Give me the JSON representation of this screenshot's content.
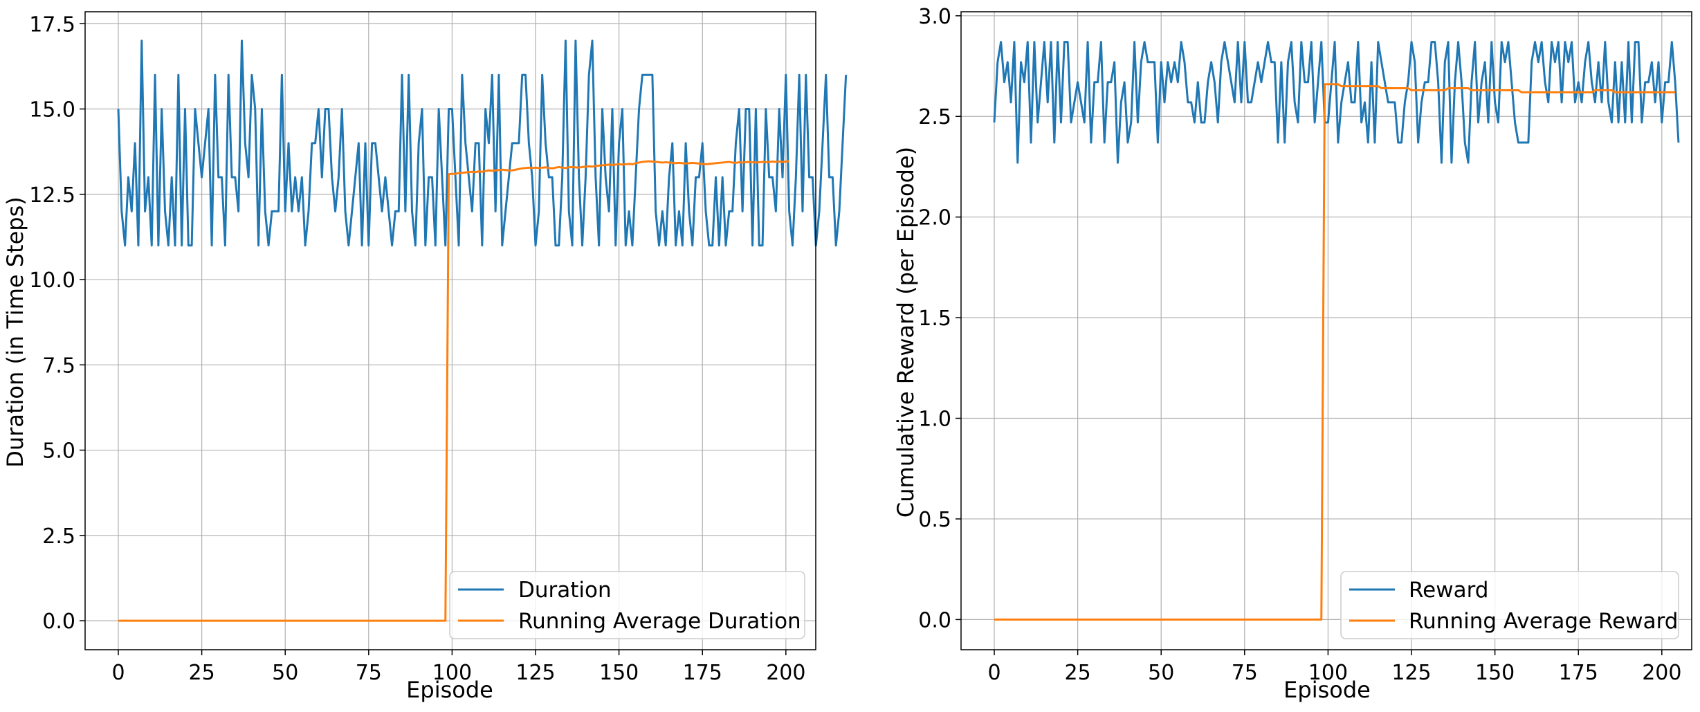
{
  "colors": {
    "series_raw": "#1f77b4",
    "series_avg": "#ff7f0e",
    "grid": "#b0b0b0",
    "axes": "#000000",
    "background": "#ffffff"
  },
  "chart_data": [
    {
      "type": "line",
      "xlabel": "Episode",
      "ylabel": "Duration (in Time Steps)",
      "xlim": [
        -9.95,
        208.95
      ],
      "ylim": [
        -0.85,
        17.85
      ],
      "xticks": [
        0,
        25,
        50,
        75,
        100,
        125,
        150,
        175,
        200
      ],
      "xtick_labels": [
        "0",
        "25",
        "50",
        "75",
        "100",
        "125",
        "150",
        "175",
        "200"
      ],
      "yticks": [
        0,
        2.5,
        5,
        7.5,
        10,
        12.5,
        15,
        17.5
      ],
      "ytick_labels": [
        "0.0",
        "2.5",
        "5.0",
        "7.5",
        "10.0",
        "12.5",
        "15.0",
        "17.5"
      ],
      "grid": true,
      "legend_position": "lower-right",
      "series": [
        {
          "name": "Duration",
          "color": "#1f77b4",
          "x_start": 0,
          "values": [
            15,
            12,
            11,
            13,
            12,
            14,
            11,
            17,
            12,
            13,
            11,
            16,
            11,
            15,
            12,
            11,
            13,
            11,
            16,
            11,
            15,
            11,
            11,
            15,
            14,
            13,
            14,
            15,
            11,
            16,
            13,
            13,
            11,
            16,
            13,
            13,
            12,
            17,
            14,
            13,
            16,
            15,
            11,
            15,
            12,
            11,
            12,
            12,
            12,
            16,
            12,
            14,
            12,
            13,
            12,
            13,
            11,
            12,
            14,
            14,
            15,
            13,
            15,
            15,
            13,
            12,
            13,
            15,
            12,
            11,
            12,
            13,
            14,
            11,
            14,
            11,
            14,
            14,
            13,
            12,
            13,
            12,
            11,
            12,
            12,
            16,
            12,
            16,
            12,
            11,
            14,
            15,
            11,
            13,
            13,
            11,
            15,
            13,
            11,
            15,
            15,
            13,
            11,
            16,
            14,
            13,
            12,
            14,
            14,
            11,
            15,
            14,
            16,
            12,
            16,
            11,
            12,
            13,
            14,
            14,
            14,
            16,
            16,
            14,
            13,
            11,
            12,
            16,
            14,
            13,
            13,
            11,
            11,
            13,
            17,
            12,
            11,
            17,
            13,
            11,
            13,
            16,
            17,
            13,
            11,
            15,
            13,
            12,
            15,
            11,
            14,
            15,
            11,
            12,
            11,
            13,
            15,
            16,
            16,
            16,
            16,
            12,
            11,
            12,
            11,
            13,
            14,
            11,
            12,
            11,
            14,
            12,
            11,
            13,
            13,
            14,
            12,
            11,
            11,
            13,
            11,
            13,
            11,
            12,
            12,
            14,
            15,
            12,
            15,
            15,
            11,
            15,
            11,
            11,
            15,
            13,
            13,
            12,
            15,
            13,
            16,
            12,
            11,
            13,
            16,
            12,
            16,
            13,
            13,
            11,
            12,
            14,
            16,
            13,
            13,
            11,
            12,
            14,
            16
          ]
        },
        {
          "name": "Running Average Duration",
          "color": "#ff7f0e",
          "x_start": 0,
          "values": [
            0,
            0,
            0,
            0,
            0,
            0,
            0,
            0,
            0,
            0,
            0,
            0,
            0,
            0,
            0,
            0,
            0,
            0,
            0,
            0,
            0,
            0,
            0,
            0,
            0,
            0,
            0,
            0,
            0,
            0,
            0,
            0,
            0,
            0,
            0,
            0,
            0,
            0,
            0,
            0,
            0,
            0,
            0,
            0,
            0,
            0,
            0,
            0,
            0,
            0,
            0,
            0,
            0,
            0,
            0,
            0,
            0,
            0,
            0,
            0,
            0,
            0,
            0,
            0,
            0,
            0,
            0,
            0,
            0,
            0,
            0,
            0,
            0,
            0,
            0,
            0,
            0,
            0,
            0,
            0,
            0,
            0,
            0,
            0,
            0,
            0,
            0,
            0,
            0,
            0,
            0,
            0,
            0,
            0,
            0,
            0,
            0,
            0,
            0,
            13.09,
            13.1,
            13.1,
            13.12,
            13.13,
            13.14,
            13.15,
            13.16,
            13.15,
            13.17,
            13.16,
            13.18,
            13.2,
            13.19,
            13.2,
            13.21,
            13.22,
            13.21,
            13.2,
            13.2,
            13.22,
            13.24,
            13.26,
            13.27,
            13.28,
            13.27,
            13.28,
            13.27,
            13.28,
            13.29,
            13.27,
            13.26,
            13.28,
            13.3,
            13.28,
            13.27,
            13.29,
            13.3,
            13.29,
            13.28,
            13.3,
            13.31,
            13.32,
            13.31,
            13.33,
            13.34,
            13.35,
            13.36,
            13.37,
            13.36,
            13.37,
            13.38,
            13.37,
            13.38,
            13.39,
            13.38,
            13.41,
            13.43,
            13.45,
            13.46,
            13.47,
            13.46,
            13.45,
            13.44,
            13.43,
            13.44,
            13.43,
            13.42,
            13.41,
            13.42,
            13.41,
            13.4,
            13.41,
            13.42,
            13.41,
            13.4,
            13.39,
            13.38,
            13.39,
            13.4,
            13.41,
            13.42,
            13.43,
            13.44,
            13.45,
            13.43,
            13.42,
            13.44,
            13.43,
            13.44,
            13.45,
            13.44,
            13.43,
            13.44,
            13.45,
            13.44,
            13.45,
            13.46,
            13.45,
            13.46,
            13.45,
            13.46,
            13.47
          ]
        }
      ]
    },
    {
      "type": "line",
      "xlabel": "Episode",
      "ylabel": "Cumulative Reward (per Episode)",
      "xlim": [
        -9.95,
        208.95
      ],
      "ylim": [
        -0.15,
        3.02
      ],
      "xticks": [
        0,
        25,
        50,
        75,
        100,
        125,
        150,
        175,
        200
      ],
      "xtick_labels": [
        "0",
        "25",
        "50",
        "75",
        "100",
        "125",
        "150",
        "175",
        "200"
      ],
      "yticks": [
        0,
        0.5,
        1,
        1.5,
        2,
        2.5,
        3
      ],
      "ytick_labels": [
        "0.0",
        "0.5",
        "1.0",
        "1.5",
        "2.0",
        "2.5",
        "3.0"
      ],
      "grid": true,
      "legend_position": "lower-right",
      "series": [
        {
          "name": "Reward",
          "color": "#1f77b4",
          "x_start": 0,
          "values": [
            2.47,
            2.77,
            2.87,
            2.67,
            2.77,
            2.57,
            2.87,
            2.27,
            2.77,
            2.67,
            2.87,
            2.37,
            2.87,
            2.47,
            2.67,
            2.87,
            2.57,
            2.87,
            2.37,
            2.87,
            2.47,
            2.87,
            2.87,
            2.47,
            2.57,
            2.67,
            2.57,
            2.47,
            2.87,
            2.37,
            2.67,
            2.67,
            2.87,
            2.37,
            2.67,
            2.67,
            2.77,
            2.27,
            2.57,
            2.67,
            2.37,
            2.47,
            2.87,
            2.47,
            2.77,
            2.87,
            2.77,
            2.77,
            2.77,
            2.37,
            2.77,
            2.57,
            2.77,
            2.67,
            2.77,
            2.67,
            2.87,
            2.77,
            2.57,
            2.57,
            2.47,
            2.67,
            2.47,
            2.47,
            2.67,
            2.77,
            2.67,
            2.47,
            2.77,
            2.87,
            2.77,
            2.67,
            2.57,
            2.87,
            2.57,
            2.87,
            2.57,
            2.57,
            2.67,
            2.77,
            2.67,
            2.77,
            2.87,
            2.77,
            2.77,
            2.37,
            2.77,
            2.37,
            2.77,
            2.87,
            2.57,
            2.47,
            2.87,
            2.67,
            2.67,
            2.87,
            2.47,
            2.67,
            2.87,
            2.47,
            2.47,
            2.67,
            2.87,
            2.37,
            2.57,
            2.67,
            2.77,
            2.57,
            2.57,
            2.87,
            2.47,
            2.57,
            2.37,
            2.77,
            2.37,
            2.87,
            2.77,
            2.67,
            2.57,
            2.57,
            2.57,
            2.37,
            2.37,
            2.57,
            2.67,
            2.87,
            2.77,
            2.37,
            2.57,
            2.67,
            2.67,
            2.87,
            2.87,
            2.67,
            2.27,
            2.77,
            2.87,
            2.27,
            2.67,
            2.87,
            2.67,
            2.37,
            2.27,
            2.67,
            2.87,
            2.47,
            2.67,
            2.77,
            2.47,
            2.87,
            2.57,
            2.47,
            2.87,
            2.77,
            2.87,
            2.67,
            2.47,
            2.37,
            2.37,
            2.37,
            2.37,
            2.77,
            2.87,
            2.77,
            2.87,
            2.67,
            2.57,
            2.87,
            2.77,
            2.87,
            2.57,
            2.87,
            2.77,
            2.87,
            2.57,
            2.67,
            2.57,
            2.77,
            2.87,
            2.67,
            2.57,
            2.77,
            2.57,
            2.87,
            2.57,
            2.47,
            2.77,
            2.47,
            2.77,
            2.47,
            2.87,
            2.47,
            2.87,
            2.87,
            2.47,
            2.67,
            2.67,
            2.77,
            2.57,
            2.77,
            2.47,
            2.67,
            2.67,
            2.87,
            2.67,
            2.37
          ]
        },
        {
          "name": "Running Average Reward",
          "color": "#ff7f0e",
          "x_start": 0,
          "values": [
            0,
            0,
            0,
            0,
            0,
            0,
            0,
            0,
            0,
            0,
            0,
            0,
            0,
            0,
            0,
            0,
            0,
            0,
            0,
            0,
            0,
            0,
            0,
            0,
            0,
            0,
            0,
            0,
            0,
            0,
            0,
            0,
            0,
            0,
            0,
            0,
            0,
            0,
            0,
            0,
            0,
            0,
            0,
            0,
            0,
            0,
            0,
            0,
            0,
            0,
            0,
            0,
            0,
            0,
            0,
            0,
            0,
            0,
            0,
            0,
            0,
            0,
            0,
            0,
            0,
            0,
            0,
            0,
            0,
            0,
            0,
            0,
            0,
            0,
            0,
            0,
            0,
            0,
            0,
            0,
            0,
            0,
            0,
            0,
            0,
            0,
            0,
            0,
            0,
            0,
            0,
            0,
            0,
            0,
            0,
            0,
            0,
            0,
            0,
            2.66,
            2.66,
            2.66,
            2.66,
            2.66,
            2.65,
            2.65,
            2.65,
            2.65,
            2.65,
            2.65,
            2.65,
            2.65,
            2.65,
            2.65,
            2.65,
            2.65,
            2.64,
            2.64,
            2.64,
            2.64,
            2.64,
            2.64,
            2.64,
            2.64,
            2.64,
            2.63,
            2.63,
            2.63,
            2.63,
            2.63,
            2.63,
            2.63,
            2.63,
            2.63,
            2.63,
            2.63,
            2.64,
            2.64,
            2.64,
            2.64,
            2.64,
            2.64,
            2.64,
            2.63,
            2.63,
            2.63,
            2.63,
            2.63,
            2.63,
            2.63,
            2.63,
            2.63,
            2.63,
            2.63,
            2.63,
            2.63,
            2.63,
            2.63,
            2.62,
            2.62,
            2.62,
            2.62,
            2.62,
            2.62,
            2.62,
            2.62,
            2.62,
            2.62,
            2.62,
            2.62,
            2.62,
            2.62,
            2.62,
            2.62,
            2.62,
            2.62,
            2.62,
            2.62,
            2.62,
            2.62,
            2.63,
            2.63,
            2.63,
            2.63,
            2.63,
            2.63,
            2.62,
            2.62,
            2.62,
            2.62,
            2.62,
            2.62,
            2.62,
            2.62,
            2.62,
            2.62,
            2.62,
            2.62,
            2.62,
            2.62,
            2.62,
            2.62,
            2.62,
            2.62,
            2.62
          ]
        }
      ]
    }
  ]
}
